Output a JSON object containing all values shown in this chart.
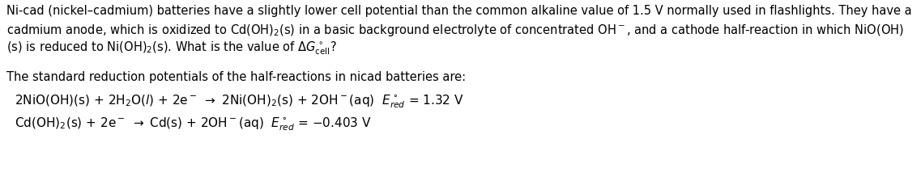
{
  "background_color": "#ffffff",
  "text_color": "#000000",
  "figsize": [
    11.37,
    2.24
  ],
  "dpi": 100,
  "font_size_body": 10.5,
  "font_size_eq": 11.0,
  "line1": "Ni-cad (nickel–cadmium) batteries have a slightly lower cell potential than the common alkaline value of 1.5 V normally used in flashlights. They have a",
  "line2": "cadmium anode, which is oxidized to Cd(OH)$_2$(s) in a basic background electrolyte of concentrated OH$^-$, and a cathode half-reaction in which NiO(OH)",
  "line3": "(s) is reduced to Ni(OH)$_2$(s). What is the value of $\\Delta G^\\circ_{\\mathrm{cell}}$?",
  "line4": "The standard reduction potentials of the half-reactions in nicad batteries are:",
  "eq1": "2NiO(OH)(s) + 2H$_2$O($l$) + 2e$^{\\bar{\\phantom{x}}}$ → 2Ni(OH)$_2$(s) + 2OH$^-$(aq)  $E^\\circ_{red}$ = 1.32 V",
  "eq2": "Cd(OH)$_2$(s) + 2e$^{\\bar{\\phantom{x}}}$ → Cd(s) + 2OH$^-$(aq)  $E^\\circ_{red}$ = −0.403 V"
}
